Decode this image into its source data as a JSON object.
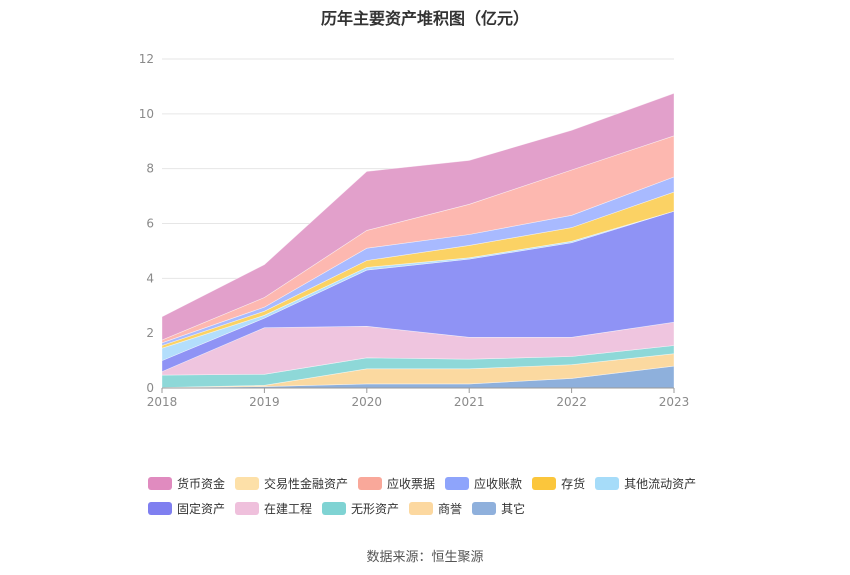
{
  "chart_data": {
    "type": "area",
    "stacked": true,
    "title": "历年主要资产堆积图（亿元）",
    "x": [
      "2018",
      "2019",
      "2020",
      "2021",
      "2022",
      "2023"
    ],
    "y_ticks": [
      "0",
      "2",
      "4",
      "6",
      "8",
      "10",
      "12"
    ],
    "ylim": [
      0,
      12
    ],
    "grid": true,
    "legend_position": "bottom",
    "series": [
      {
        "name": "其它",
        "color": "#8eb0dc",
        "values": [
          0.02,
          0.05,
          0.15,
          0.15,
          0.35,
          0.8
        ]
      },
      {
        "name": "商誉",
        "color": "#fbd9a0",
        "values": [
          0.0,
          0.05,
          0.55,
          0.55,
          0.5,
          0.45
        ]
      },
      {
        "name": "无形资产",
        "color": "#8ed8d8",
        "values": [
          0.45,
          0.4,
          0.4,
          0.35,
          0.3,
          0.3
        ]
      },
      {
        "name": "在建工程",
        "color": "#efc5df",
        "values": [
          0.13,
          1.7,
          1.15,
          0.8,
          0.7,
          0.85
        ]
      },
      {
        "name": "固定资产",
        "color": "#8f93f5",
        "values": [
          0.4,
          0.35,
          2.05,
          2.85,
          3.45,
          4.05
        ]
      },
      {
        "name": "其他流动资产",
        "color": "#b3defc",
        "values": [
          0.45,
          0.1,
          0.1,
          0.05,
          0.05,
          0.0
        ]
      },
      {
        "name": "存货",
        "color": "#fbd264",
        "values": [
          0.1,
          0.15,
          0.25,
          0.45,
          0.5,
          0.7
        ]
      },
      {
        "name": "应收账款",
        "color": "#a8baff",
        "values": [
          0.1,
          0.15,
          0.45,
          0.4,
          0.45,
          0.55
        ]
      },
      {
        "name": "应收票据",
        "color": "#fdb8b0",
        "values": [
          0.1,
          0.35,
          0.65,
          1.1,
          1.65,
          1.5
        ]
      },
      {
        "name": "货币资金",
        "color": "#e2a0cb",
        "values": [
          0.85,
          1.2,
          2.15,
          1.6,
          1.45,
          1.55
        ]
      }
    ]
  },
  "legend": {
    "row1": [
      "货币资金",
      "交易性金融资产",
      "应收票据",
      "应收账款",
      "存货",
      "其他流动资产"
    ],
    "row1_colors": [
      "#e08bbf",
      "#fde0a8",
      "#f9a89a",
      "#8ea4fb",
      "#fbc63c",
      "#a6dcf9"
    ],
    "row2": [
      "固定资产",
      "在建工程",
      "无形资产",
      "商誉",
      "其它"
    ],
    "row2_colors": [
      "#7f7ff0",
      "#efc0dc",
      "#7fd3d3",
      "#fcd8a0",
      "#8fb0dc"
    ]
  },
  "source": "数据来源：恒生聚源"
}
